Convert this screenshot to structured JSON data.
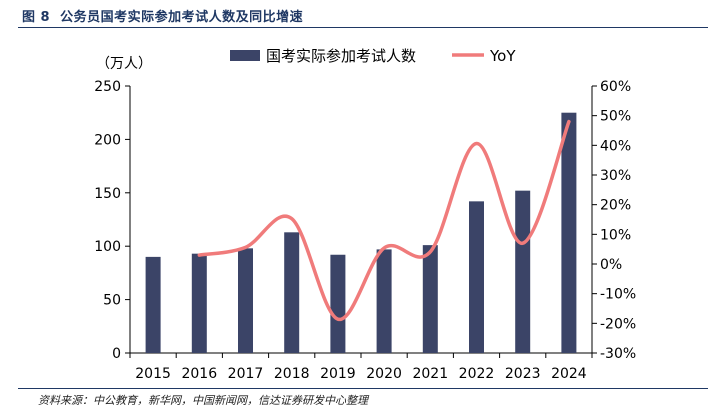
{
  "figure": {
    "title_prefix": "图 8",
    "title": "公务员国考实际参加考试人数及同比增速",
    "source": "资料来源：中公教育，新华网，中国新闻网，信达证券研发中心整理"
  },
  "chart_data": {
    "type": "bar+line",
    "categories": [
      "2015",
      "2016",
      "2017",
      "2018",
      "2019",
      "2020",
      "2021",
      "2022",
      "2023",
      "2024"
    ],
    "series": [
      {
        "name": "国考实际参加考试人数",
        "type": "bar",
        "axis": "left",
        "values": [
          90,
          93,
          98,
          113,
          92,
          97,
          101,
          142,
          152,
          225
        ]
      },
      {
        "name": "YoY",
        "type": "line",
        "axis": "right",
        "values": [
          null,
          3,
          5.6,
          15.3,
          -18.6,
          5.4,
          4.1,
          40.6,
          7.0,
          48.0
        ]
      }
    ],
    "left_unit": "（万人）",
    "left_axis": {
      "min": 0,
      "max": 250,
      "ticks": [
        0,
        50,
        100,
        150,
        200,
        250
      ]
    },
    "right_axis": {
      "min": -30,
      "max": 60,
      "ticks": [
        -30,
        -20,
        -10,
        0,
        10,
        20,
        30,
        40,
        50,
        60
      ],
      "format": "percent"
    },
    "legend_position": "top",
    "grid": false,
    "colors": {
      "bar": "#3b4467",
      "line": "#f07b7b",
      "title": "#1f3864",
      "axis": "#000000"
    }
  }
}
